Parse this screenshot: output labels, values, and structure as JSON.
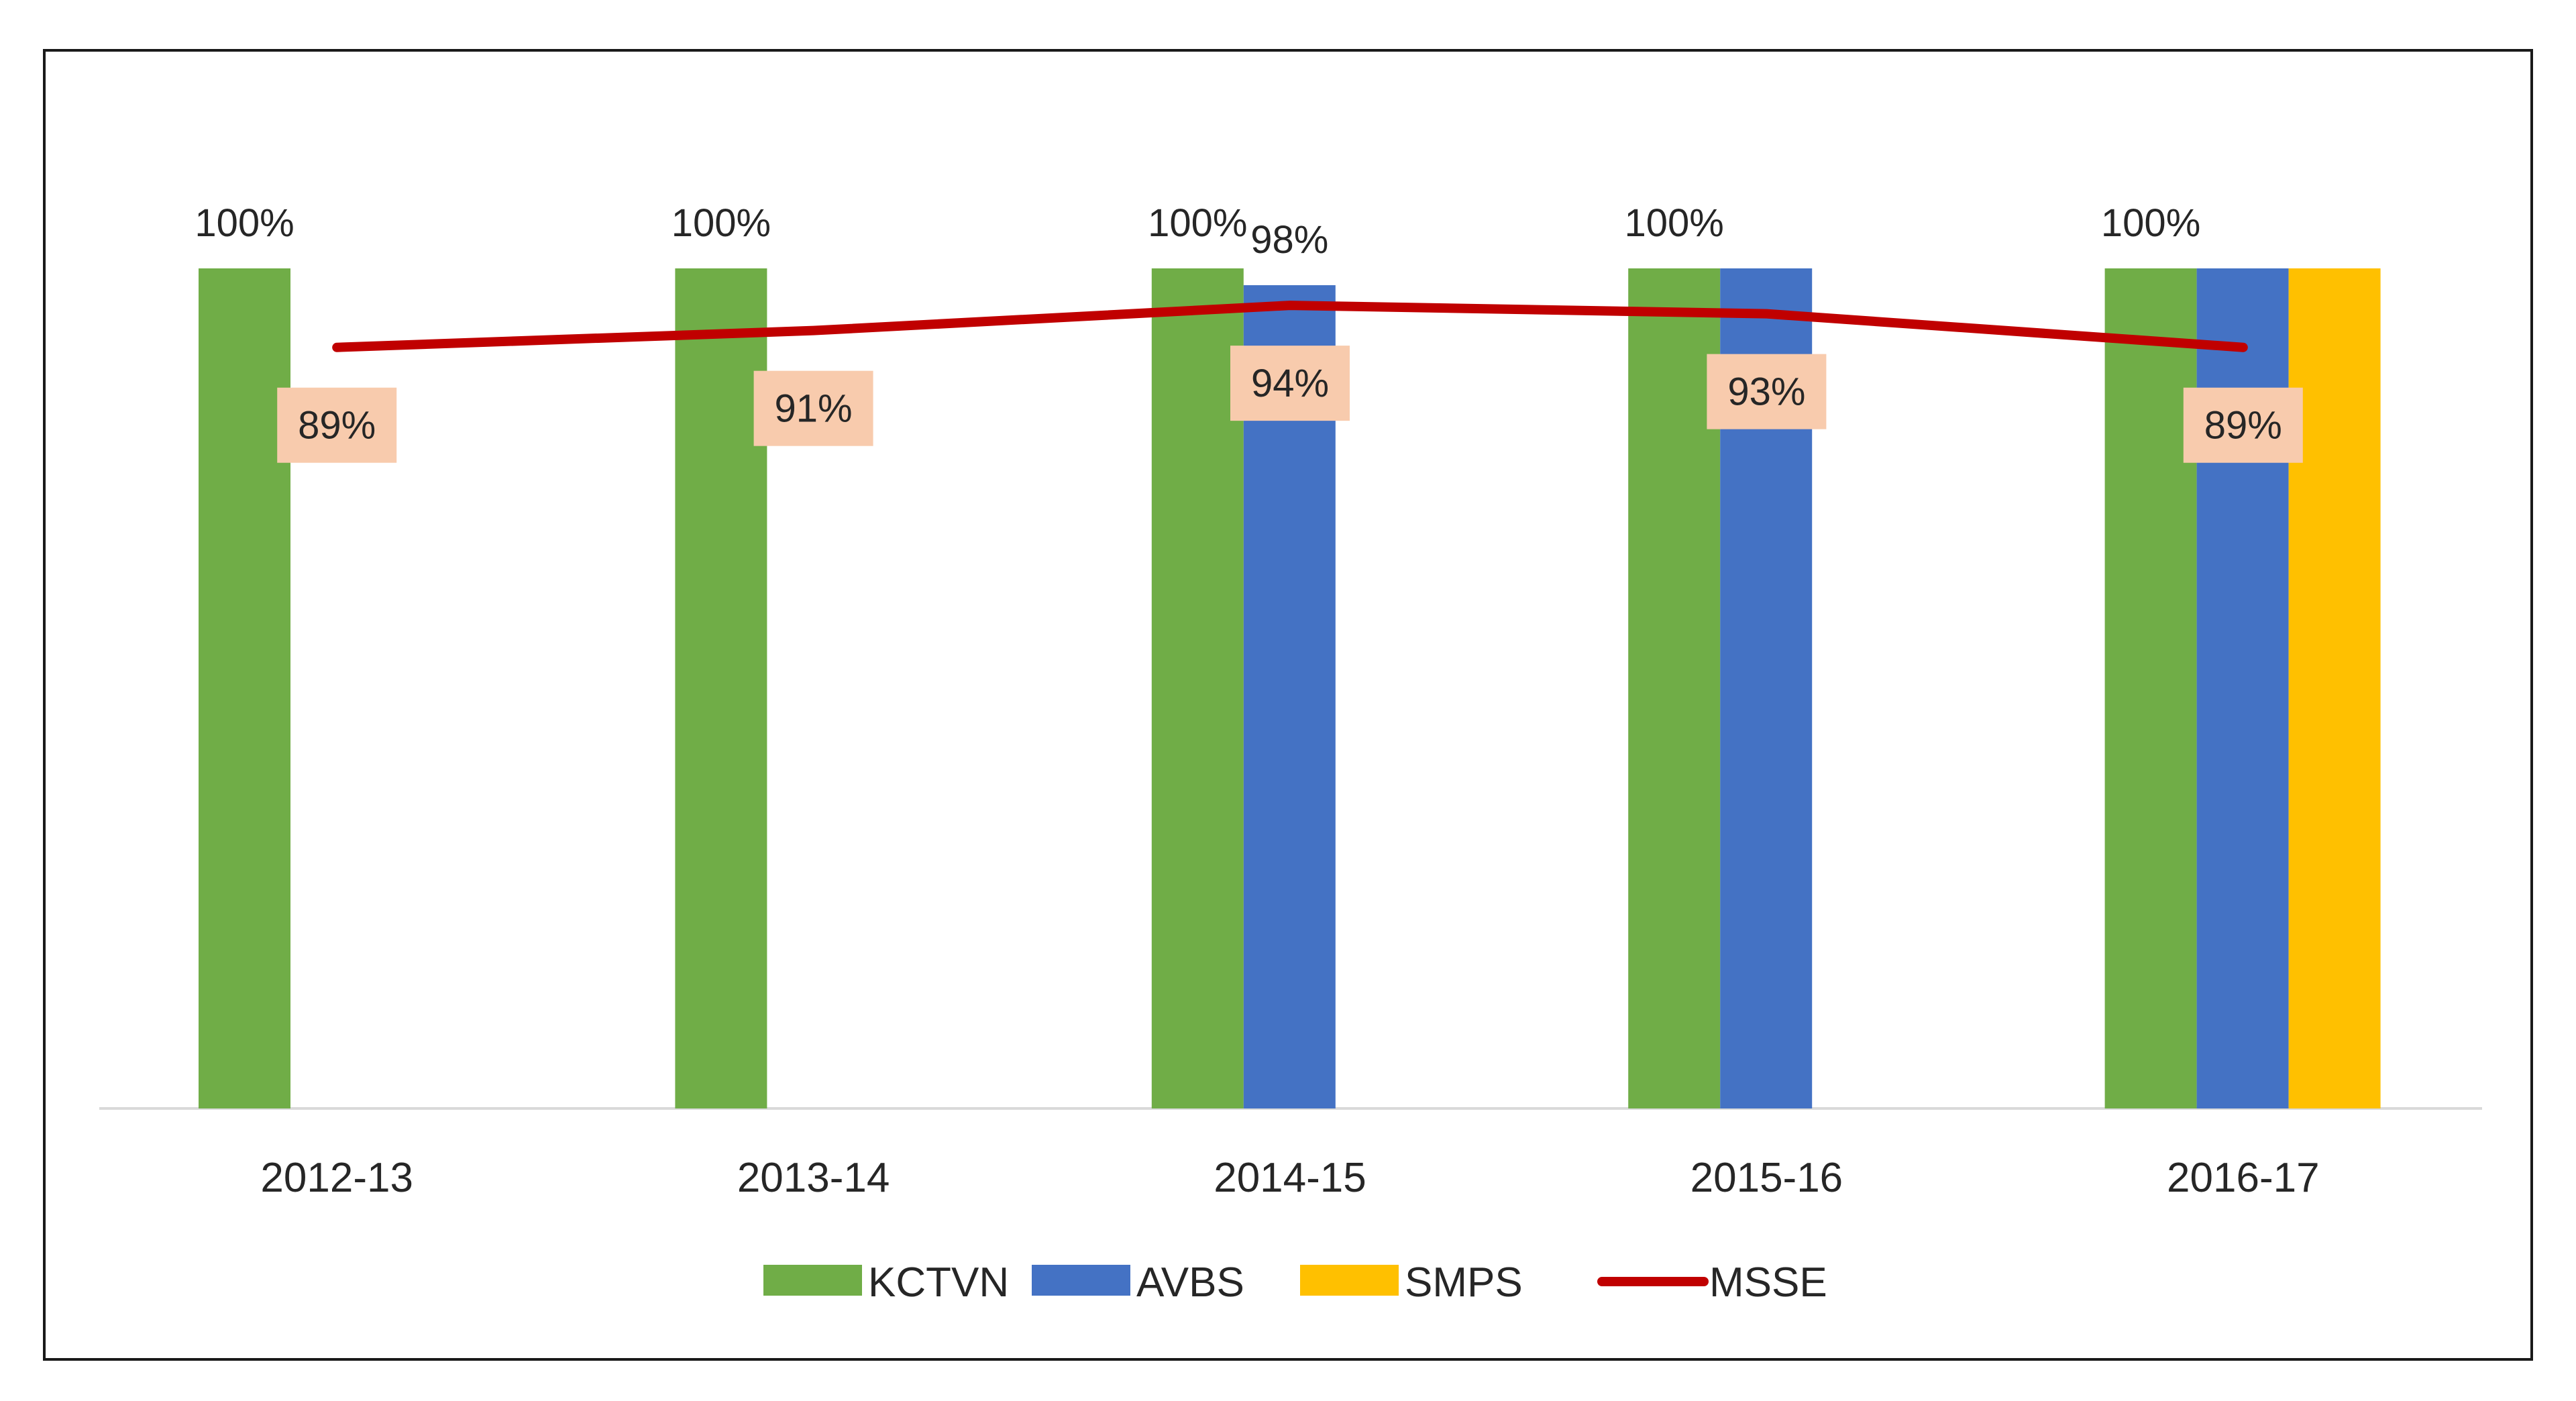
{
  "chart_data": {
    "type": "bar",
    "title": "",
    "xlabel": "",
    "ylabel": "",
    "ylim": [
      0,
      100
    ],
    "grid": false,
    "legend_position": "bottom",
    "categories": [
      "2012-13",
      "2013-14",
      "2014-15",
      "2015-16",
      "2016-17"
    ],
    "series": [
      {
        "name": "KCTVN",
        "color": "#70AD47",
        "values": [
          100,
          100,
          100,
          100,
          100
        ],
        "labels": [
          "100%",
          "100%",
          "100%",
          "100%",
          "100%"
        ]
      },
      {
        "name": "AVBS",
        "color": "#4472C4",
        "values": [
          null,
          null,
          98,
          100,
          100
        ],
        "labels": [
          null,
          null,
          "98%",
          null,
          null
        ]
      },
      {
        "name": "SMPS",
        "color": "#FFC000",
        "values": [
          null,
          null,
          null,
          null,
          100
        ],
        "labels": [
          null,
          null,
          null,
          null,
          null
        ]
      }
    ],
    "line_series": {
      "name": "MSSE",
      "color": "#C00000",
      "label_background": "#F8CBAD",
      "values": [
        89,
        91,
        94,
        93,
        89
      ],
      "labels": [
        "89%",
        "91%",
        "94%",
        "93%",
        "89%"
      ]
    }
  }
}
